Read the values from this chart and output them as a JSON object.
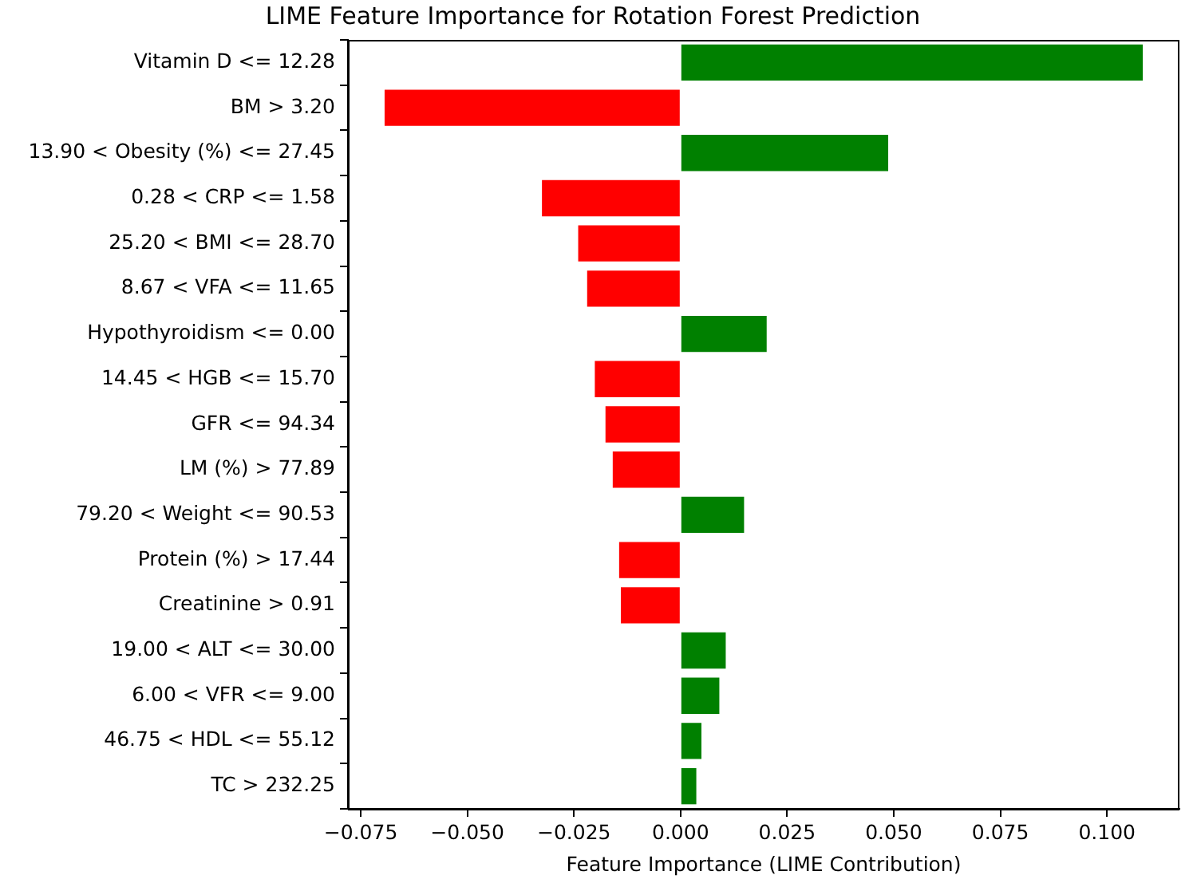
{
  "chart_data": {
    "type": "bar",
    "orientation": "horizontal",
    "title": "LIME Feature Importance for Rotation Forest Prediction",
    "xlabel": "Feature Importance (LIME Contribution)",
    "categories": [
      "Vitamin D <= 12.28",
      "BM > 3.20",
      "13.90 < Obesity (%) <= 27.45",
      "0.28 < CRP <= 1.58",
      "25.20 < BMI <= 28.70",
      "8.67 < VFA <= 11.65",
      "Hypothyroidism <= 0.00",
      "14.45 < HGB <= 15.70",
      "GFR <= 94.34",
      "LM (%) > 77.89",
      "79.20 < Weight <= 90.53",
      "Protein (%) > 17.44",
      "Creatinine > 0.91",
      "19.00 < ALT <= 30.00",
      "6.00 < VFR <= 9.00",
      "46.75 < HDL <= 55.12",
      "TC > 232.25"
    ],
    "values": [
      0.1084,
      -0.0694,
      0.0487,
      -0.0325,
      -0.024,
      -0.0219,
      0.0202,
      -0.0201,
      -0.0176,
      -0.0159,
      0.0149,
      -0.0144,
      -0.014,
      0.0106,
      0.0091,
      0.0049,
      0.0037
    ],
    "colors": [
      "#008000",
      "#ff0000",
      "#008000",
      "#ff0000",
      "#ff0000",
      "#ff0000",
      "#008000",
      "#ff0000",
      "#ff0000",
      "#ff0000",
      "#008000",
      "#ff0000",
      "#ff0000",
      "#008000",
      "#008000",
      "#008000",
      "#008000"
    ],
    "xlim": [
      -0.078,
      0.117
    ],
    "xticks": [
      {
        "value": -0.075,
        "label": "−0.075"
      },
      {
        "value": -0.05,
        "label": "−0.050"
      },
      {
        "value": -0.025,
        "label": "−0.025"
      },
      {
        "value": 0,
        "label": "0.000"
      },
      {
        "value": 0.025,
        "label": "0.025"
      },
      {
        "value": 0.05,
        "label": "0.050"
      },
      {
        "value": 0.075,
        "label": "0.075"
      },
      {
        "value": 0.1,
        "label": "0.100"
      }
    ],
    "grid": false,
    "legend": false
  }
}
